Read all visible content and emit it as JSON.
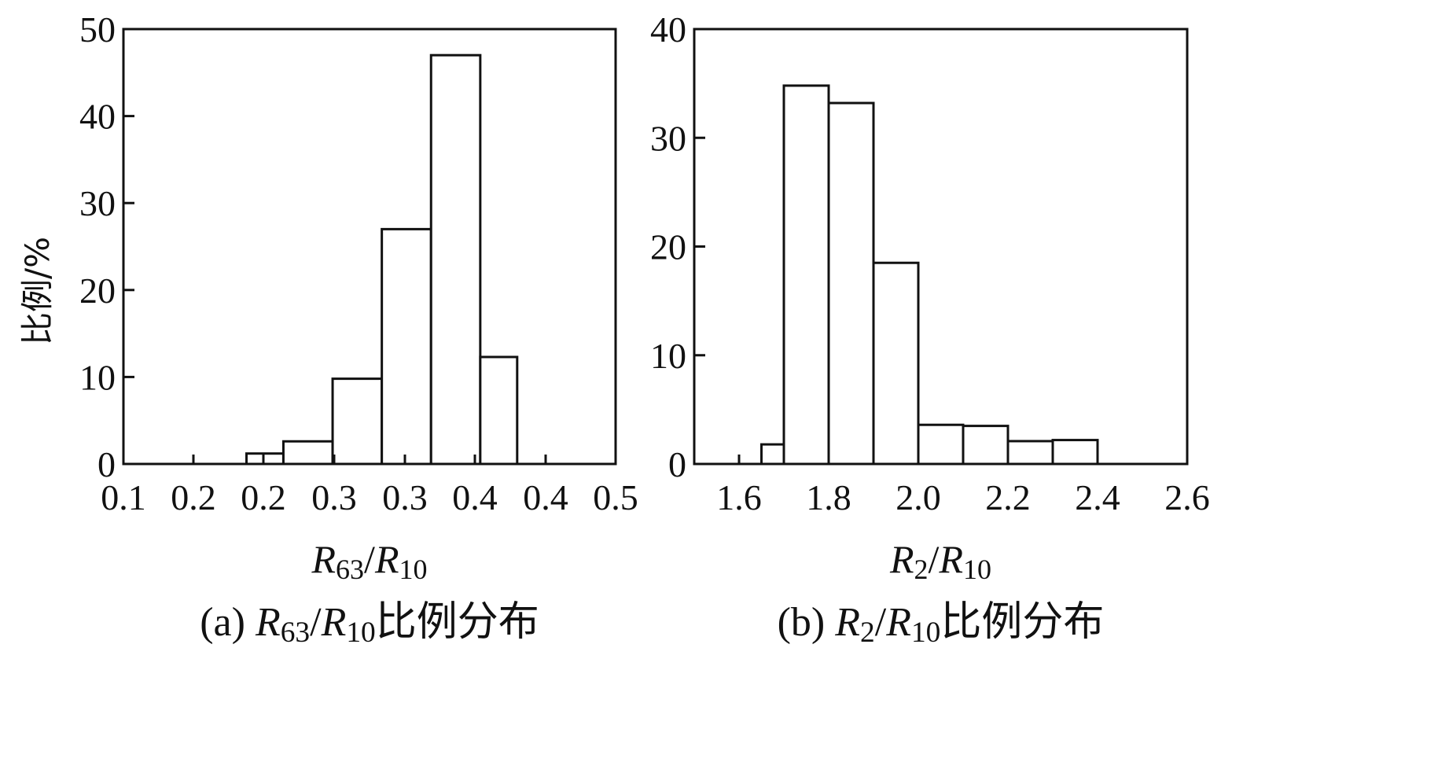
{
  "chart_data": [
    {
      "type": "bar",
      "panel": "a",
      "ylabel": "比例/%",
      "xlabel_parts": [
        {
          "text": "R",
          "style": "italic"
        },
        {
          "text": "63",
          "style": "sub"
        },
        {
          "text": "/",
          "style": "normal"
        },
        {
          "text": "R",
          "style": "italic"
        },
        {
          "text": "10",
          "style": "sub"
        }
      ],
      "caption_parts": [
        {
          "text": "(a) ",
          "style": "normal"
        },
        {
          "text": "R",
          "style": "italic"
        },
        {
          "text": "63",
          "style": "sub"
        },
        {
          "text": "/",
          "style": "normal"
        },
        {
          "text": "R",
          "style": "italic"
        },
        {
          "text": "10",
          "style": "sub"
        },
        {
          "text": "比例分布",
          "style": "normal"
        }
      ],
      "xlim": [
        0.1,
        0.5
      ],
      "ylim": [
        0,
        50
      ],
      "xtick_labels": [
        "0.1",
        "0.2",
        "0.2",
        "0.3",
        "0.3",
        "0.4",
        "0.4",
        "0.5"
      ],
      "ytick_labels": [
        "0",
        "10",
        "20",
        "30",
        "40",
        "50"
      ],
      "ytick_values": [
        0,
        10,
        20,
        30,
        40,
        50
      ],
      "bars": [
        {
          "x0": 0.2,
          "x1": 0.23,
          "value": 1.2
        },
        {
          "x0": 0.23,
          "x1": 0.27,
          "value": 2.6
        },
        {
          "x0": 0.27,
          "x1": 0.31,
          "value": 9.8
        },
        {
          "x0": 0.31,
          "x1": 0.35,
          "value": 27.0
        },
        {
          "x0": 0.35,
          "x1": 0.39,
          "value": 47.0
        },
        {
          "x0": 0.39,
          "x1": 0.42,
          "value": 12.3
        }
      ],
      "grid": false
    },
    {
      "type": "bar",
      "panel": "b",
      "xlabel_parts": [
        {
          "text": "R",
          "style": "italic"
        },
        {
          "text": "2",
          "style": "sub"
        },
        {
          "text": "/",
          "style": "normal"
        },
        {
          "text": "R",
          "style": "italic"
        },
        {
          "text": "10",
          "style": "sub"
        }
      ],
      "caption_parts": [
        {
          "text": "(b) ",
          "style": "normal"
        },
        {
          "text": "R",
          "style": "italic"
        },
        {
          "text": "2",
          "style": "sub"
        },
        {
          "text": "/",
          "style": "normal"
        },
        {
          "text": "R",
          "style": "italic"
        },
        {
          "text": "10",
          "style": "sub"
        },
        {
          "text": "比例分布",
          "style": "normal"
        }
      ],
      "xlim": [
        1.5,
        2.6
      ],
      "ylim": [
        0,
        40
      ],
      "xtick_values": [
        1.6,
        1.8,
        2.0,
        2.2,
        2.4,
        2.6
      ],
      "xtick_labels": [
        "1.6",
        "1.8",
        "2.0",
        "2.2",
        "2.4",
        "2.6"
      ],
      "ytick_values": [
        0,
        10,
        20,
        30,
        40
      ],
      "ytick_labels": [
        "0",
        "10",
        "20",
        "30",
        "40"
      ],
      "bars": [
        {
          "x0": 1.65,
          "x1": 1.7,
          "value": 1.8
        },
        {
          "x0": 1.7,
          "x1": 1.8,
          "value": 34.8
        },
        {
          "x0": 1.8,
          "x1": 1.9,
          "value": 33.2
        },
        {
          "x0": 1.9,
          "x1": 2.0,
          "value": 18.5
        },
        {
          "x0": 2.0,
          "x1": 2.1,
          "value": 3.6
        },
        {
          "x0": 2.1,
          "x1": 2.2,
          "value": 3.5
        },
        {
          "x0": 2.2,
          "x1": 2.3,
          "value": 2.1
        },
        {
          "x0": 2.3,
          "x1": 2.4,
          "value": 2.2
        }
      ],
      "grid": false
    }
  ]
}
